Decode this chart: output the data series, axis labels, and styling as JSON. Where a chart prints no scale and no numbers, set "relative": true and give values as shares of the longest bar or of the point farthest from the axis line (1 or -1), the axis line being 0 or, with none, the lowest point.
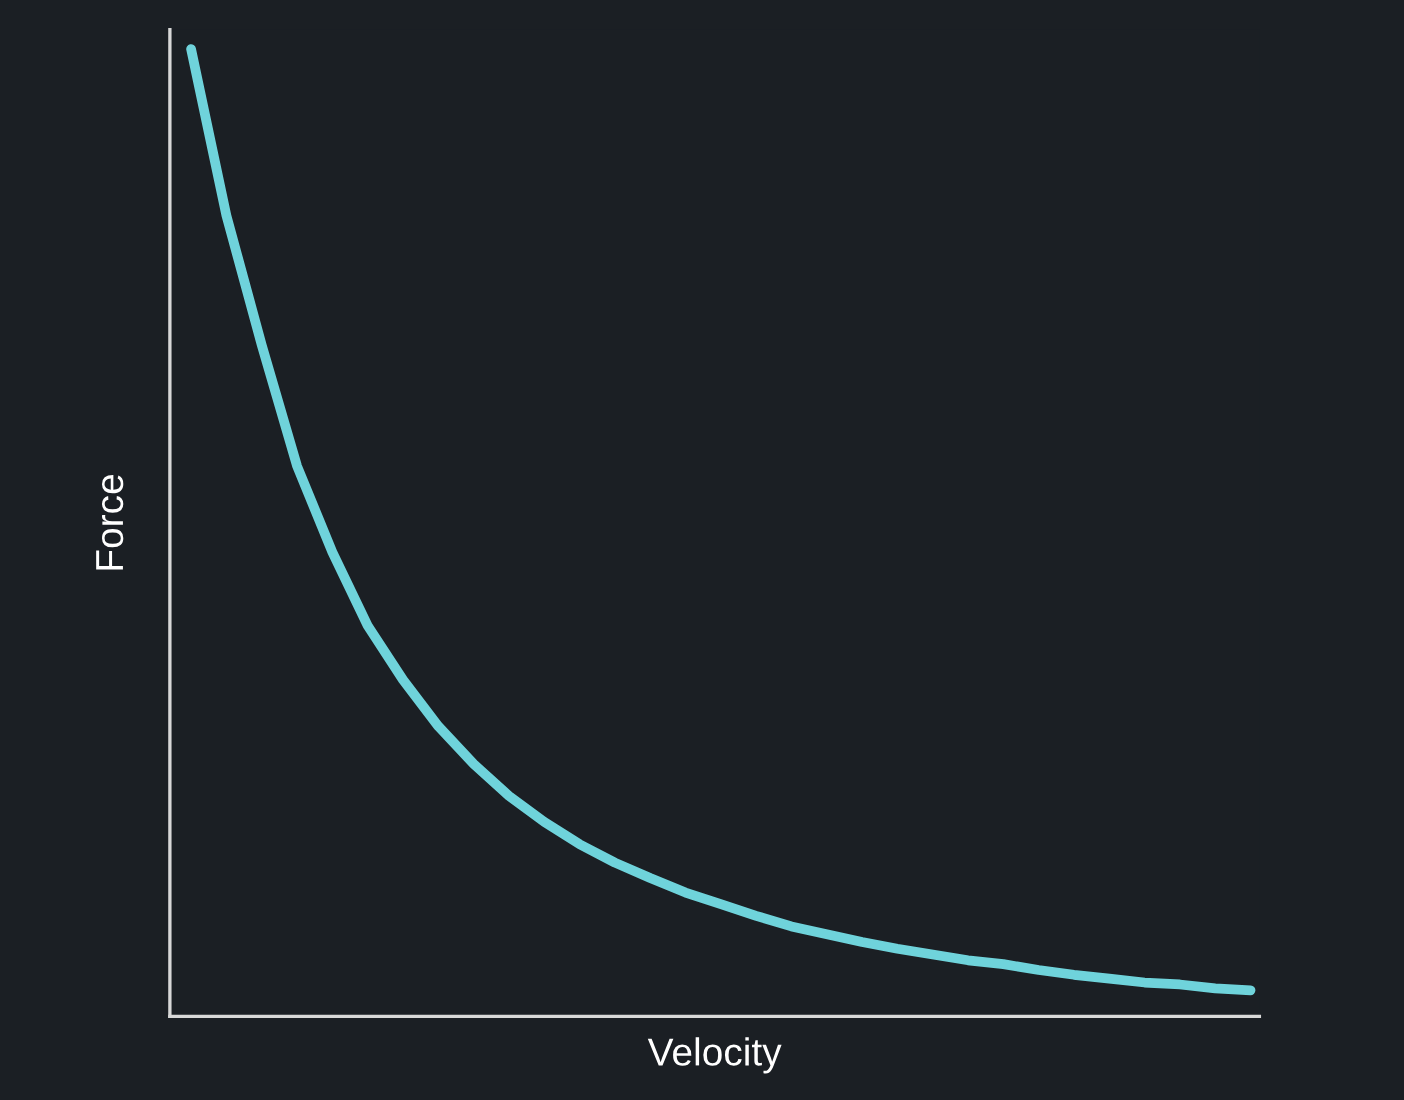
{
  "chart_data": {
    "type": "line",
    "relative": true,
    "xlabel": "Velocity",
    "ylabel": "Force",
    "grid": false,
    "legend": false,
    "marker": "none",
    "line_style": "solid",
    "categories": [
      null,
      null,
      null,
      null,
      null,
      null,
      null,
      null,
      null,
      null,
      null,
      null,
      null,
      null,
      null,
      null,
      null,
      null,
      null,
      null,
      null,
      null,
      null,
      null,
      null,
      null,
      null,
      null,
      null,
      null,
      null
    ],
    "series": [
      {
        "color": "#6fd3db",
        "values": [
          1,
          0.828,
          0.694,
          0.569,
          0.48,
          0.404,
          0.348,
          0.3,
          0.261,
          0.228,
          0.201,
          0.178,
          0.159,
          0.143,
          0.128,
          0.116,
          0.104,
          0.093,
          0.085,
          0.077,
          0.07,
          0.064,
          0.058,
          0.054,
          0.048,
          0.043,
          0.039,
          0.035,
          0.033,
          0.029,
          0.027
        ]
      }
    ]
  }
}
